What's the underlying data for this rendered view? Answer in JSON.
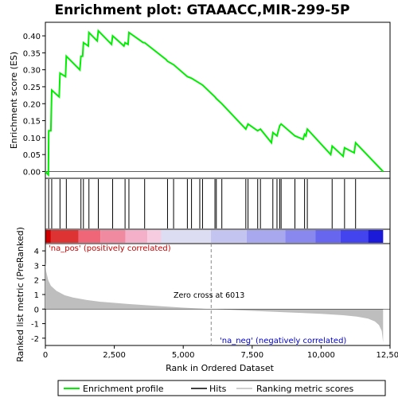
{
  "chart_data": {
    "type": "line",
    "title": "Enrichment plot: GTAAACC,MIR-299-5P",
    "xlabel": "Rank in Ordered Dataset",
    "x_ticks": [
      0,
      2500,
      5000,
      7500,
      10000,
      12500
    ],
    "x_tick_labels": [
      "0",
      "2,500",
      "5,000",
      "7,500",
      "10,000",
      "12,500"
    ],
    "xlim": [
      0,
      12500
    ],
    "colors": {
      "enrichment_line": "#00ee00",
      "hits": "#000000",
      "metric_fill": "#bebebe",
      "zero_cross_line": "#888888",
      "pos_label": "#cc0000",
      "neg_label": "#0000cc"
    },
    "es_panel": {
      "ylabel": "Enrichment score (ES)",
      "ylim": [
        -0.02,
        0.44
      ],
      "y_ticks": [
        0.0,
        0.05,
        0.1,
        0.15,
        0.2,
        0.25,
        0.3,
        0.35,
        0.4
      ],
      "y_tick_labels": [
        "0.00",
        "0.05",
        "0.10",
        "0.15",
        "0.20",
        "0.25",
        "0.30",
        "0.35",
        "0.40"
      ],
      "series": [
        {
          "name": "Enrichment profile",
          "points": [
            [
              0,
              0.0
            ],
            [
              110,
              -0.01
            ],
            [
              120,
              0.12
            ],
            [
              200,
              0.12
            ],
            [
              230,
              0.24
            ],
            [
              500,
              0.22
            ],
            [
              530,
              0.29
            ],
            [
              730,
              0.28
            ],
            [
              760,
              0.34
            ],
            [
              1250,
              0.3
            ],
            [
              1290,
              0.34
            ],
            [
              1350,
              0.34
            ],
            [
              1380,
              0.38
            ],
            [
              1560,
              0.37
            ],
            [
              1580,
              0.41
            ],
            [
              1880,
              0.385
            ],
            [
              1920,
              0.415
            ],
            [
              2400,
              0.375
            ],
            [
              2440,
              0.4
            ],
            [
              2850,
              0.37
            ],
            [
              2890,
              0.38
            ],
            [
              3000,
              0.375
            ],
            [
              3030,
              0.41
            ],
            [
              3550,
              0.38
            ],
            [
              3600,
              0.38
            ],
            [
              4380,
              0.33
            ],
            [
              4430,
              0.325
            ],
            [
              4650,
              0.315
            ],
            [
              5150,
              0.28
            ],
            [
              5300,
              0.275
            ],
            [
              5600,
              0.26
            ],
            [
              5700,
              0.255
            ],
            [
              6150,
              0.22
            ],
            [
              6200,
              0.215
            ],
            [
              6400,
              0.2
            ],
            [
              7270,
              0.125
            ],
            [
              7350,
              0.14
            ],
            [
              7700,
              0.12
            ],
            [
              7800,
              0.125
            ],
            [
              8200,
              0.085
            ],
            [
              8250,
              0.115
            ],
            [
              8400,
              0.105
            ],
            [
              8500,
              0.135
            ],
            [
              8550,
              0.14
            ],
            [
              9050,
              0.105
            ],
            [
              9350,
              0.095
            ],
            [
              9400,
              0.11
            ],
            [
              9450,
              0.105
            ],
            [
              9500,
              0.125
            ],
            [
              10350,
              0.05
            ],
            [
              10400,
              0.075
            ],
            [
              10800,
              0.045
            ],
            [
              10850,
              0.07
            ],
            [
              11200,
              0.055
            ],
            [
              11250,
              0.085
            ],
            [
              12250,
              0.0
            ]
          ]
        }
      ]
    },
    "hits": {
      "name": "Hits",
      "positions": [
        120,
        230,
        530,
        760,
        1290,
        1380,
        1580,
        1920,
        2440,
        2890,
        3030,
        3600,
        4430,
        4650,
        5150,
        5300,
        5600,
        5700,
        6150,
        6200,
        6400,
        7270,
        7350,
        7700,
        7800,
        8250,
        8400,
        8500,
        8550,
        9050,
        9400,
        9500,
        10400,
        10850,
        11250
      ]
    },
    "rank_bar": {
      "colors": [
        "#cc0000",
        "#dd3333",
        "#ee6677",
        "#f08aa0",
        "#f4b0c8",
        "#f6cce0",
        "#dcdcf2",
        "#c4c4f0",
        "#a8a8ee",
        "#8888ee",
        "#6666ee",
        "#4444ee",
        "#1a1ad8"
      ],
      "boundaries": [
        0,
        200,
        1200,
        2000,
        2900,
        3700,
        4200,
        6000,
        7300,
        8700,
        9800,
        10700,
        11700,
        12250
      ]
    },
    "metric_panel": {
      "name": "Ranking metric scores",
      "ylabel": "Ranked list metric (PreRanked)",
      "ylim": [
        -2.5,
        4.5
      ],
      "y_ticks": [
        -2,
        -1,
        0,
        1,
        2,
        3,
        4
      ],
      "y_tick_labels": [
        "-2",
        "-1",
        "0",
        "1",
        "2",
        "3",
        "4"
      ],
      "zero_cross": 6013,
      "zero_cross_label": "Zero cross at 6013",
      "pos_label": "'na_pos' (positively correlated)",
      "neg_label": "'na_neg' (negatively correlated)",
      "profile": [
        [
          0,
          3.2
        ],
        [
          30,
          2.6
        ],
        [
          100,
          2.0
        ],
        [
          200,
          1.6
        ],
        [
          400,
          1.25
        ],
        [
          700,
          0.95
        ],
        [
          1000,
          0.8
        ],
        [
          1500,
          0.62
        ],
        [
          2000,
          0.5
        ],
        [
          3000,
          0.35
        ],
        [
          4000,
          0.22
        ],
        [
          5000,
          0.1
        ],
        [
          6013,
          0.0
        ],
        [
          7000,
          -0.08
        ],
        [
          8000,
          -0.16
        ],
        [
          9000,
          -0.24
        ],
        [
          10000,
          -0.33
        ],
        [
          10800,
          -0.42
        ],
        [
          11300,
          -0.52
        ],
        [
          11700,
          -0.65
        ],
        [
          11950,
          -0.85
        ],
        [
          12100,
          -1.1
        ],
        [
          12200,
          -1.5
        ],
        [
          12250,
          -2.3
        ]
      ]
    },
    "legend": [
      {
        "label": "Enrichment profile",
        "color": "#00ee00"
      },
      {
        "label": "Hits",
        "color": "#000000"
      },
      {
        "label": "Ranking metric scores",
        "color": "#bebebe"
      }
    ]
  }
}
